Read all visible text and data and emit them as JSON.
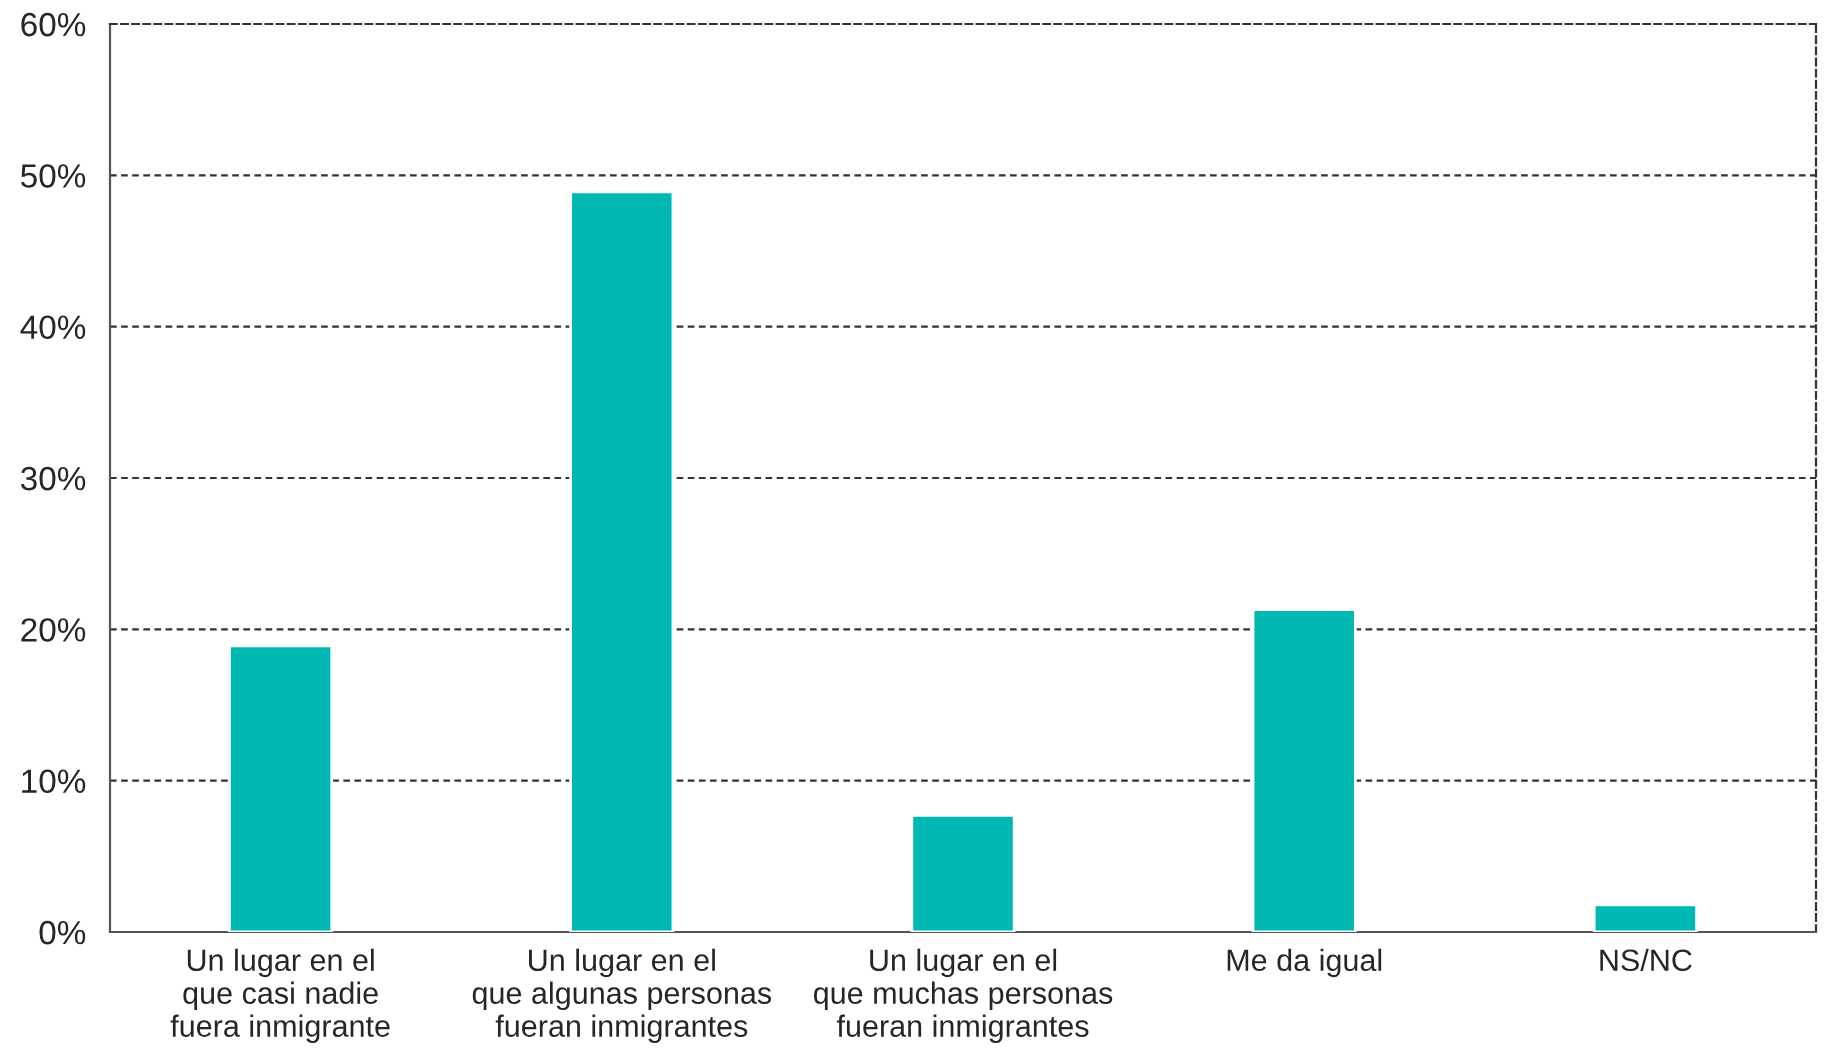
{
  "chart_data": {
    "type": "bar",
    "categories": [
      "Un lugar en el\nque casi nadie\nfuera inmigrante",
      "Un lugar en el\nque algunas personas\nfueran inmigrantes",
      "Un lugar en el\nque muchas personas\nfueran inmigrantes",
      "Me da igual",
      "NS/NC"
    ],
    "values": [
      18.9,
      48.9,
      7.7,
      21.3,
      1.8
    ],
    "color": "#00b8b2",
    "ylim": [
      0,
      60
    ],
    "yticks": [
      {
        "value": 0,
        "label": "0%"
      },
      {
        "value": 10,
        "label": "10%"
      },
      {
        "value": 20,
        "label": "20%"
      },
      {
        "value": 30,
        "label": "30%"
      },
      {
        "value": 40,
        "label": "40%"
      },
      {
        "value": 50,
        "label": "50%"
      },
      {
        "value": 60,
        "label": "60%"
      }
    ],
    "grid": "y"
  }
}
